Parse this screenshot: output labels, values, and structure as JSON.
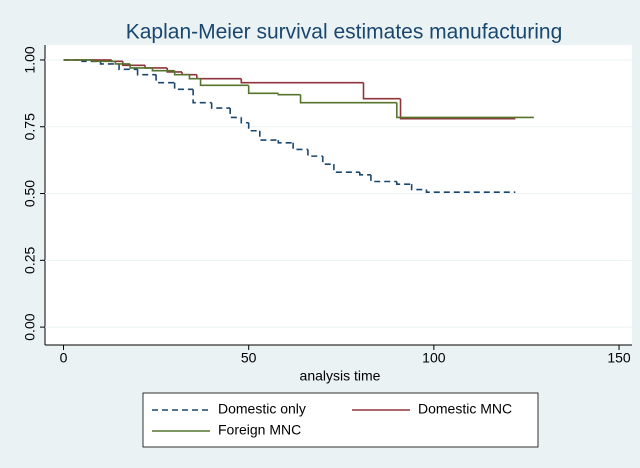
{
  "chart_data": {
    "type": "line",
    "step": true,
    "title": "Kaplan-Meier survival estimates manufacturing",
    "xlabel": "analysis time",
    "xlim": [
      -5,
      153.5
    ],
    "xticks": [
      0,
      50,
      100,
      150
    ],
    "ylim": [
      -0.067,
      1.056
    ],
    "yticks": [
      {
        "value": 0,
        "label": "0.00"
      },
      {
        "value": 0.25,
        "label": "0.25"
      },
      {
        "value": 0.5,
        "label": "0.50"
      },
      {
        "value": 0.75,
        "label": "0.75"
      },
      {
        "value": 1,
        "label": "1.00"
      }
    ],
    "grid": true,
    "legend": "bottom",
    "series": [
      {
        "name": "Domestic only",
        "color": "#1a476f",
        "line_style": "dashed",
        "x": [
          0,
          5,
          10,
          15,
          20,
          25,
          30,
          35,
          40,
          45,
          48,
          50,
          53,
          58,
          62,
          66,
          70,
          73,
          80,
          83,
          90,
          94,
          98,
          122
        ],
        "values": [
          1,
          0.995,
          0.985,
          0.965,
          0.945,
          0.915,
          0.89,
          0.84,
          0.82,
          0.785,
          0.765,
          0.735,
          0.7,
          0.69,
          0.665,
          0.64,
          0.61,
          0.58,
          0.57,
          0.545,
          0.535,
          0.515,
          0.505,
          0.505
        ]
      },
      {
        "name": "Domestic MNC",
        "color": "#90353b",
        "line_style": "solid",
        "x": [
          0,
          10,
          13,
          16,
          22,
          28,
          32,
          36,
          48,
          81,
          91,
          122
        ],
        "values": [
          1,
          1,
          0.995,
          0.98,
          0.97,
          0.955,
          0.945,
          0.93,
          0.915,
          0.855,
          0.78,
          0.78
        ]
      },
      {
        "name": "Foreign MNC",
        "color": "#55752f",
        "line_style": "solid",
        "x": [
          0,
          8,
          14,
          18,
          24,
          30,
          34,
          37,
          50,
          58,
          64,
          90,
          127
        ],
        "values": [
          1,
          0.995,
          0.985,
          0.97,
          0.96,
          0.945,
          0.93,
          0.905,
          0.875,
          0.87,
          0.84,
          0.785,
          0.785
        ]
      }
    ]
  }
}
